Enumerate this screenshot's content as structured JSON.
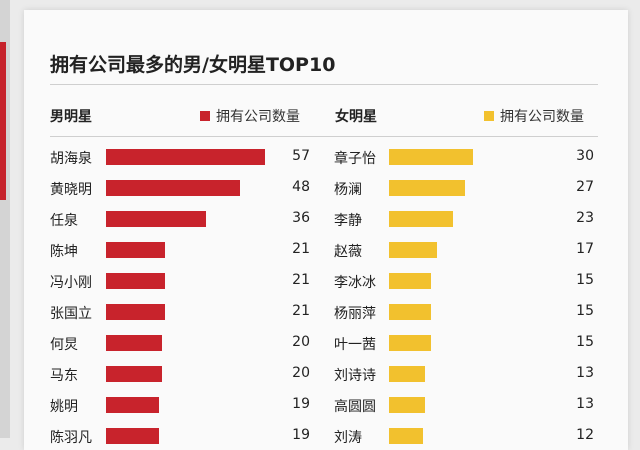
{
  "title": "拥有公司最多的男/女明星TOP10",
  "colors": {
    "male": "#c8232c",
    "female": "#f2c12e"
  },
  "chart_data": [
    {
      "type": "bar",
      "heading": "男明星",
      "legend": "拥有公司数量",
      "xlim": [
        0,
        57
      ],
      "rows": [
        {
          "name": "胡海泉",
          "value": 57
        },
        {
          "name": "黄晓明",
          "value": 48
        },
        {
          "name": "任泉",
          "value": 36
        },
        {
          "name": "陈坤",
          "value": 21
        },
        {
          "name": "冯小刚",
          "value": 21
        },
        {
          "name": "张国立",
          "value": 21
        },
        {
          "name": "何炅",
          "value": 20
        },
        {
          "name": "马东",
          "value": 20
        },
        {
          "name": "姚明",
          "value": 19
        },
        {
          "name": "陈羽凡",
          "value": 19
        }
      ]
    },
    {
      "type": "bar",
      "heading": "女明星",
      "legend": "拥有公司数量",
      "xlim": [
        0,
        30
      ],
      "rows": [
        {
          "name": "章子怡",
          "value": 30
        },
        {
          "name": "杨澜",
          "value": 27
        },
        {
          "name": "李静",
          "value": 23
        },
        {
          "name": "赵薇",
          "value": 17
        },
        {
          "name": "李冰冰",
          "value": 15
        },
        {
          "name": "杨丽萍",
          "value": 15
        },
        {
          "name": "叶一茜",
          "value": 15
        },
        {
          "name": "刘诗诗",
          "value": 13
        },
        {
          "name": "高圆圆",
          "value": 13
        },
        {
          "name": "刘涛",
          "value": 12
        }
      ]
    }
  ]
}
